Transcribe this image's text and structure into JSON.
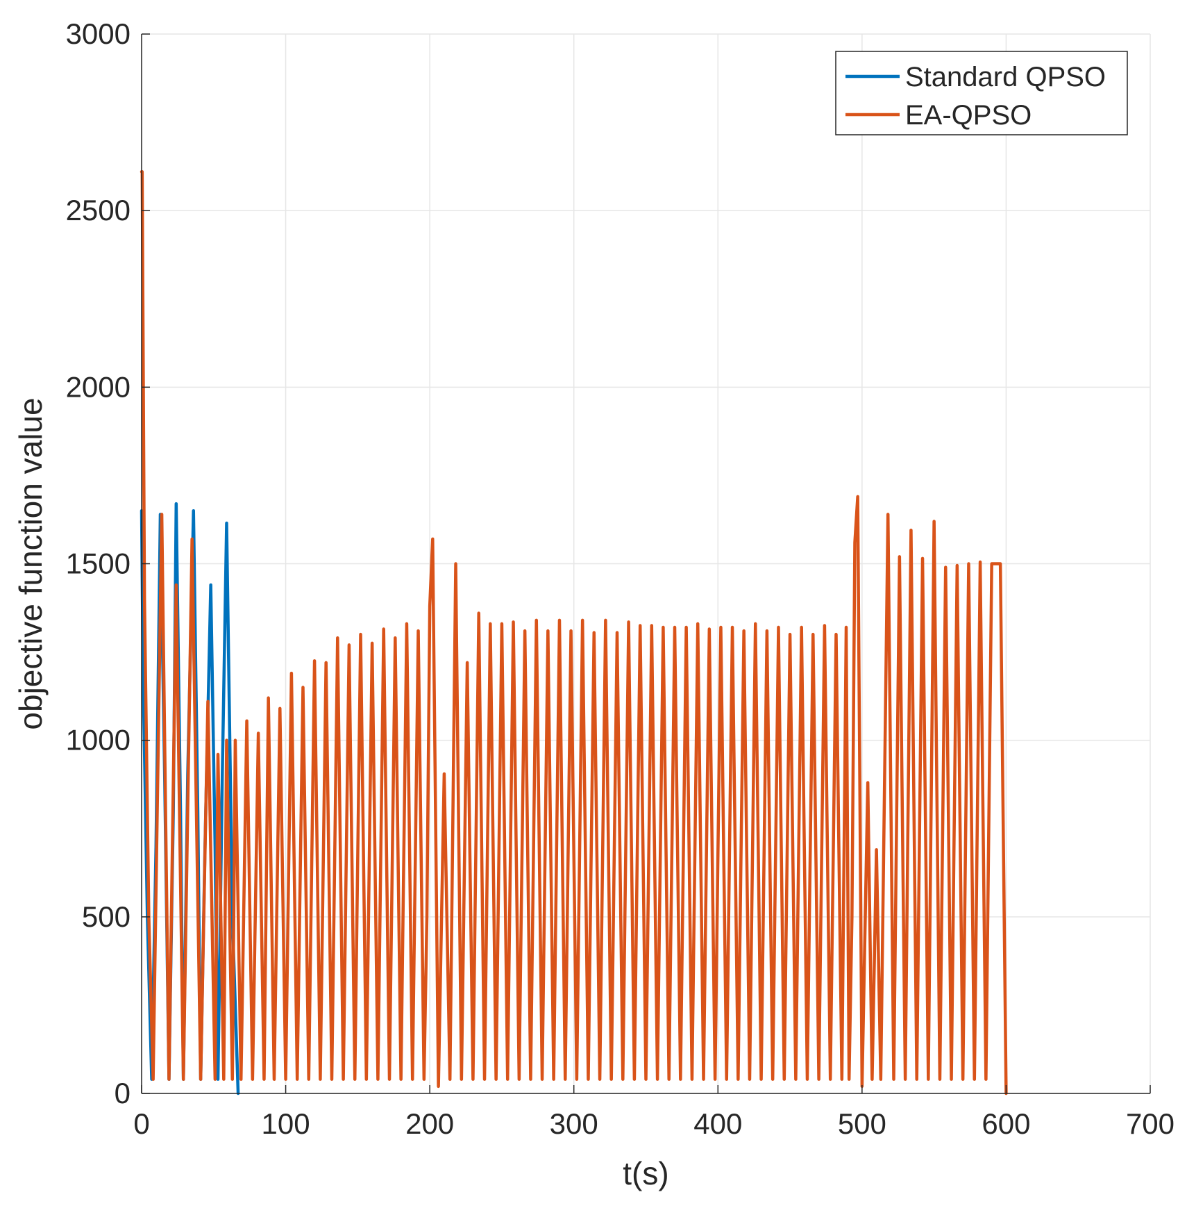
{
  "chart_data": {
    "type": "line",
    "xlabel": "t(s)",
    "ylabel": "objective function value",
    "xlim": [
      0,
      700
    ],
    "ylim": [
      0,
      3000
    ],
    "xticks": [
      0,
      100,
      200,
      300,
      400,
      500,
      600,
      700
    ],
    "yticks": [
      0,
      500,
      1000,
      1500,
      2000,
      2500,
      3000
    ],
    "x_tick_labels": [
      "0",
      "100",
      "200",
      "300",
      "400",
      "500",
      "600",
      "700"
    ],
    "y_tick_labels": [
      "0",
      "500",
      "1000",
      "1500",
      "2000",
      "2500",
      "3000"
    ],
    "grid": true,
    "legend": {
      "placement": "top-right",
      "entries": [
        "Standard QPSO",
        "EA-QPSO"
      ]
    },
    "series": [
      {
        "name": "Standard QPSO",
        "color": "#0072BD",
        "points": [
          [
            0,
            1650
          ],
          [
            1,
            1200
          ],
          [
            4,
            500
          ],
          [
            7,
            40
          ],
          [
            10,
            700
          ],
          [
            13,
            1640
          ],
          [
            16,
            900
          ],
          [
            19,
            40
          ],
          [
            22,
            800
          ],
          [
            24,
            1670
          ],
          [
            27,
            800
          ],
          [
            29,
            40
          ],
          [
            32,
            900
          ],
          [
            36,
            1650
          ],
          [
            39,
            800
          ],
          [
            41,
            40
          ],
          [
            44,
            700
          ],
          [
            48,
            1440
          ],
          [
            51,
            700
          ],
          [
            53,
            40
          ],
          [
            56,
            900
          ],
          [
            59,
            1615
          ],
          [
            63,
            500
          ],
          [
            67,
            0
          ]
        ]
      },
      {
        "name": "EA-QPSO",
        "color": "#D95319",
        "points": [
          [
            0,
            2610
          ],
          [
            0.4,
            2610
          ],
          [
            2,
            1400
          ],
          [
            5,
            500
          ],
          [
            8,
            40
          ],
          [
            14,
            1640
          ],
          [
            19,
            40
          ],
          [
            24,
            1440
          ],
          [
            29,
            40
          ],
          [
            35,
            1570
          ],
          [
            41,
            40
          ],
          [
            46,
            1110
          ],
          [
            51,
            40
          ],
          [
            53,
            960
          ],
          [
            57,
            40
          ],
          [
            59,
            1000
          ],
          [
            63,
            40
          ],
          [
            65,
            1000
          ],
          [
            69,
            40
          ],
          [
            73,
            1055
          ],
          [
            77,
            40
          ],
          [
            81,
            1020
          ],
          [
            85,
            40
          ],
          [
            88,
            1120
          ],
          [
            92,
            40
          ],
          [
            96,
            1090
          ],
          [
            100,
            40
          ],
          [
            104,
            1190
          ],
          [
            108,
            40
          ],
          [
            112,
            1150
          ],
          [
            116,
            40
          ],
          [
            120,
            1225
          ],
          [
            124,
            40
          ],
          [
            128,
            1220
          ],
          [
            132,
            40
          ],
          [
            136,
            1290
          ],
          [
            140,
            40
          ],
          [
            144,
            1270
          ],
          [
            148,
            40
          ],
          [
            152,
            1300
          ],
          [
            156,
            40
          ],
          [
            160,
            1275
          ],
          [
            164,
            40
          ],
          [
            168,
            1315
          ],
          [
            172,
            40
          ],
          [
            176,
            1290
          ],
          [
            180,
            40
          ],
          [
            184,
            1330
          ],
          [
            188,
            40
          ],
          [
            192,
            1310
          ],
          [
            196,
            40
          ],
          [
            198,
            500
          ],
          [
            200,
            1380
          ],
          [
            202,
            1570
          ],
          [
            206,
            20
          ],
          [
            210,
            905
          ],
          [
            214,
            40
          ],
          [
            218,
            1500
          ],
          [
            222,
            40
          ],
          [
            226,
            1220
          ],
          [
            230,
            40
          ],
          [
            234,
            1360
          ],
          [
            238,
            40
          ],
          [
            242,
            1330
          ],
          [
            246,
            40
          ],
          [
            250,
            1330
          ],
          [
            254,
            40
          ],
          [
            258,
            1335
          ],
          [
            262,
            40
          ],
          [
            266,
            1310
          ],
          [
            270,
            40
          ],
          [
            274,
            1340
          ],
          [
            278,
            40
          ],
          [
            282,
            1310
          ],
          [
            286,
            40
          ],
          [
            290,
            1340
          ],
          [
            294,
            40
          ],
          [
            298,
            1310
          ],
          [
            302,
            40
          ],
          [
            306,
            1340
          ],
          [
            310,
            40
          ],
          [
            314,
            1305
          ],
          [
            318,
            40
          ],
          [
            322,
            1340
          ],
          [
            326,
            40
          ],
          [
            330,
            1305
          ],
          [
            334,
            40
          ],
          [
            338,
            1335
          ],
          [
            342,
            40
          ],
          [
            346,
            1325
          ],
          [
            350,
            40
          ],
          [
            354,
            1325
          ],
          [
            358,
            40
          ],
          [
            362,
            1320
          ],
          [
            366,
            40
          ],
          [
            370,
            1320
          ],
          [
            374,
            40
          ],
          [
            378,
            1320
          ],
          [
            382,
            40
          ],
          [
            386,
            1330
          ],
          [
            390,
            40
          ],
          [
            394,
            1315
          ],
          [
            398,
            40
          ],
          [
            402,
            1320
          ],
          [
            406,
            40
          ],
          [
            410,
            1320
          ],
          [
            414,
            40
          ],
          [
            418,
            1310
          ],
          [
            422,
            40
          ],
          [
            426,
            1330
          ],
          [
            430,
            40
          ],
          [
            434,
            1310
          ],
          [
            438,
            40
          ],
          [
            442,
            1320
          ],
          [
            446,
            40
          ],
          [
            450,
            1300
          ],
          [
            454,
            40
          ],
          [
            458,
            1320
          ],
          [
            462,
            40
          ],
          [
            466,
            1300
          ],
          [
            470,
            40
          ],
          [
            474,
            1325
          ],
          [
            478,
            40
          ],
          [
            482,
            1300
          ],
          [
            486,
            40
          ],
          [
            489,
            1320
          ],
          [
            491,
            40
          ],
          [
            493,
            500
          ],
          [
            495,
            1560
          ],
          [
            497,
            1690
          ],
          [
            500,
            20
          ],
          [
            504,
            880
          ],
          [
            507,
            40
          ],
          [
            510,
            690
          ],
          [
            513,
            40
          ],
          [
            518,
            1640
          ],
          [
            522,
            40
          ],
          [
            526,
            1520
          ],
          [
            530,
            40
          ],
          [
            534,
            1595
          ],
          [
            538,
            40
          ],
          [
            542,
            1515
          ],
          [
            546,
            40
          ],
          [
            550,
            1620
          ],
          [
            554,
            40
          ],
          [
            558,
            1490
          ],
          [
            562,
            40
          ],
          [
            566,
            1495
          ],
          [
            570,
            40
          ],
          [
            574,
            1500
          ],
          [
            578,
            40
          ],
          [
            582,
            1505
          ],
          [
            586,
            40
          ],
          [
            590,
            1500
          ],
          [
            596,
            1500
          ],
          [
            600,
            0
          ]
        ]
      }
    ]
  }
}
